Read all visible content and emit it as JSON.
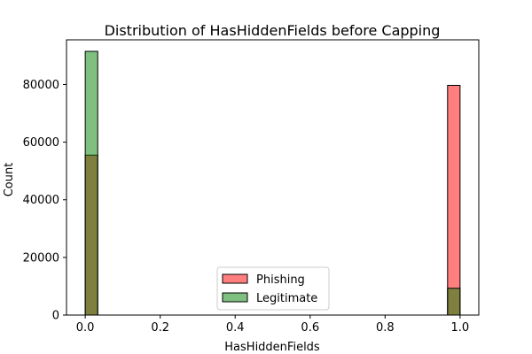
{
  "chart_data": {
    "type": "histogram",
    "title": "Distribution of HasHiddenFields before Capping",
    "xlabel": "HasHiddenFields",
    "ylabel": "Count",
    "xlim": [
      -0.05,
      1.05
    ],
    "ylim": [
      0,
      95500
    ],
    "x_ticks": [
      0.0,
      0.2,
      0.4,
      0.6,
      0.8,
      1.0
    ],
    "x_tick_labels": [
      "0.0",
      "0.2",
      "0.4",
      "0.6",
      "0.8",
      "1.0"
    ],
    "y_ticks": [
      0,
      20000,
      40000,
      60000,
      80000
    ],
    "y_tick_labels": [
      "0",
      "20000",
      "40000",
      "60000",
      "80000"
    ],
    "bins": 30,
    "bin_range": [
      0,
      1
    ],
    "series": [
      {
        "name": "Phishing",
        "color": "#ff0000",
        "alpha": 0.5,
        "bars": [
          {
            "x_start": 0.0,
            "x_end": 0.0333,
            "value": 55500
          },
          {
            "x_start": 0.9667,
            "x_end": 1.0,
            "value": 79700
          }
        ]
      },
      {
        "name": "Legitimate",
        "color": "#008000",
        "alpha": 0.5,
        "bars": [
          {
            "x_start": 0.0,
            "x_end": 0.0333,
            "value": 91500
          },
          {
            "x_start": 0.9667,
            "x_end": 1.0,
            "value": 9300
          }
        ]
      }
    ],
    "legend": {
      "position": "lower-center",
      "entries": [
        "Phishing",
        "Legitimate"
      ]
    },
    "grid": false
  }
}
